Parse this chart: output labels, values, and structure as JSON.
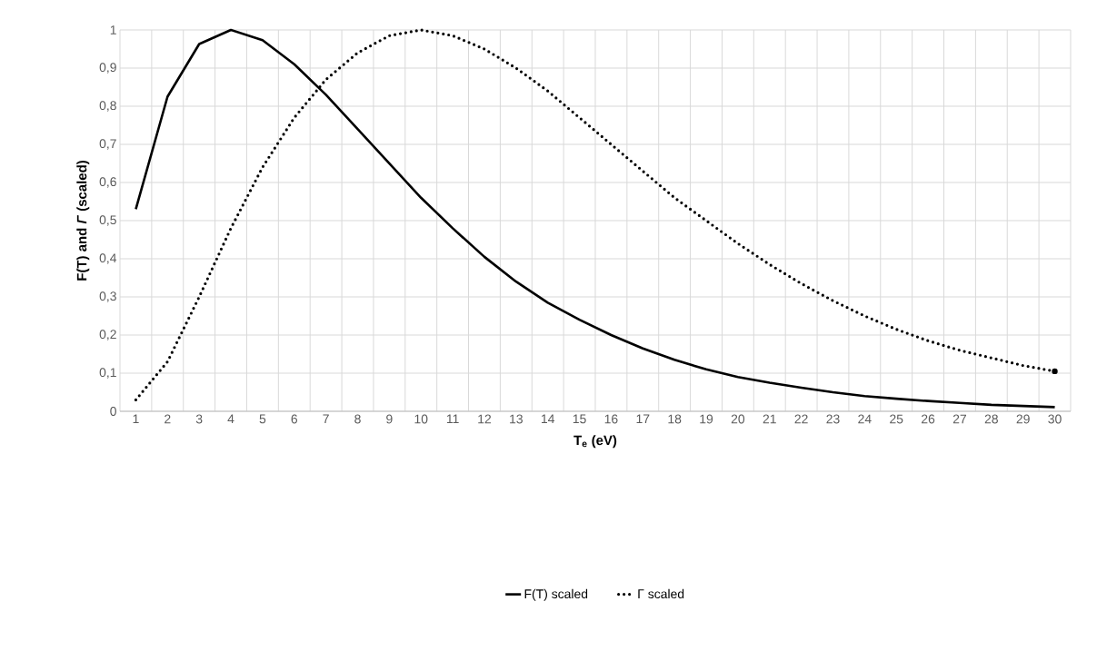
{
  "chart_data": {
    "type": "line",
    "xlabel": "T$_{e}$ (eV)",
    "ylabel": "F(T) and *Γ* (scaled)",
    "categories": [
      "1",
      "2",
      "3",
      "4",
      "5",
      "6",
      "7",
      "8",
      "9",
      "10",
      "11",
      "12",
      "13",
      "14",
      "15",
      "16",
      "17",
      "18",
      "19",
      "20",
      "21",
      "22",
      "23",
      "24",
      "25",
      "26",
      "27",
      "28",
      "29",
      "30"
    ],
    "series": [
      {
        "name": "F(T) scaled",
        "color": "#000000",
        "line_style": "solid",
        "values": [
          0.53,
          0.825,
          0.963,
          1.0,
          0.973,
          0.91,
          0.83,
          0.74,
          0.65,
          0.56,
          0.48,
          0.405,
          0.34,
          0.285,
          0.24,
          0.2,
          0.165,
          0.135,
          0.11,
          0.09,
          0.075,
          0.062,
          0.05,
          0.04,
          0.033,
          0.027,
          0.022,
          0.017,
          0.014,
          0.011
        ]
      },
      {
        "name": "Γ scaled",
        "color": "#000000",
        "line_style": "dotted",
        "values": [
          0.03,
          0.13,
          0.3,
          0.48,
          0.64,
          0.77,
          0.87,
          0.94,
          0.985,
          1.0,
          0.985,
          0.95,
          0.9,
          0.84,
          0.77,
          0.7,
          0.63,
          0.56,
          0.5,
          0.44,
          0.385,
          0.335,
          0.29,
          0.25,
          0.215,
          0.185,
          0.16,
          0.14,
          0.12,
          0.105
        ]
      }
    ],
    "ylim": [
      0,
      1
    ],
    "yticks": [
      0,
      {
        "value": 0.1,
        "label": "0,1"
      },
      {
        "value": 0.2,
        "label": "0,2"
      },
      {
        "value": 0.3,
        "label": "0,3"
      },
      {
        "value": 0.4,
        "label": "0,4"
      },
      {
        "value": 0.5,
        "label": "0,5"
      },
      {
        "value": 0.6,
        "label": "0,6"
      },
      {
        "value": 0.7,
        "label": "0,7"
      },
      {
        "value": 0.8,
        "label": "0,8"
      },
      {
        "value": 0.9,
        "label": "0,9"
      },
      1
    ],
    "grid": true,
    "legend": "bottom"
  }
}
